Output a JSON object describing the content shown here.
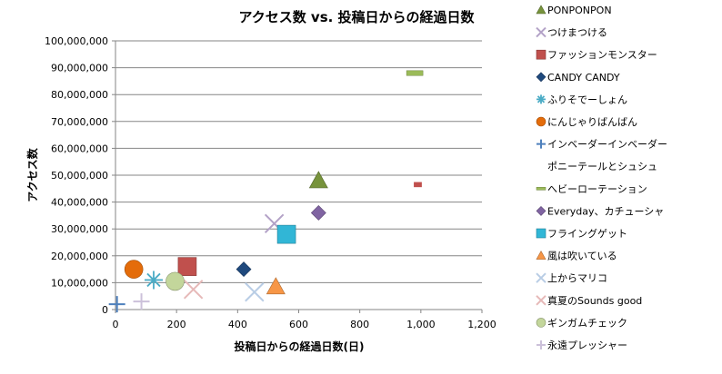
{
  "chart_data": {
    "type": "scatter",
    "title": "アクセス数 vs. 投稿日からの経過日数",
    "xlabel": "投稿日からの経過日数(日)",
    "ylabel": "アクセス数",
    "xlim": [
      0,
      1200
    ],
    "ylim": [
      0,
      100000000
    ],
    "x_ticks": [
      "0",
      "200",
      "400",
      "600",
      "800",
      "1,000",
      "1,200"
    ],
    "y_ticks": [
      "0",
      "10,000,000",
      "20,000,000",
      "30,000,000",
      "40,000,000",
      "50,000,000",
      "60,000,000",
      "70,000,000",
      "80,000,000",
      "90,000,000",
      "100,000,000"
    ],
    "grid": "horizontal",
    "legend_position": "right",
    "series": [
      {
        "name": "PONPONPON",
        "marker": "triangle",
        "color": "#77933C",
        "x": 665,
        "y": 48000000
      },
      {
        "name": "つけまつける",
        "marker": "x",
        "color": "#B3A2C7",
        "x": 520,
        "y": 32000000
      },
      {
        "name": "ファッションモンスター",
        "marker": "square",
        "color": "#C0504D",
        "x": 235,
        "y": 16000000
      },
      {
        "name": "CANDY CANDY",
        "marker": "diamond",
        "color": "#1F497D",
        "x": 420,
        "y": 15000000
      },
      {
        "name": "ふりそでーしょん",
        "marker": "star",
        "color": "#4BACC6",
        "x": 125,
        "y": 11000000
      },
      {
        "name": "にんじゃりばんばん",
        "marker": "circle",
        "color": "#E46C0A",
        "x": 60,
        "y": 15000000
      },
      {
        "name": "インベーダーインベーダー",
        "marker": "plus",
        "color": "#4F81BD",
        "x": 5,
        "y": 2000000
      },
      {
        "name": "ポニーテールとシュシュ",
        "marker": "none",
        "color": "#000000",
        "x": null,
        "y": null
      },
      {
        "name": "へビーローテーション",
        "marker": "dash",
        "color": "#9BBB59",
        "x": 980,
        "y": 88000000
      },
      {
        "name": "Everyday、カチューシャ",
        "marker": "diamond",
        "color": "#8064A2",
        "x": 665,
        "y": 36000000
      },
      {
        "name": "フライングゲット",
        "marker": "square",
        "color": "#31B6D6",
        "x": 560,
        "y": 28000000
      },
      {
        "name": "風は吹いている",
        "marker": "triangle",
        "color": "#F79646",
        "x": 525,
        "y": 8500000
      },
      {
        "name": "上からマリコ",
        "marker": "x",
        "color": "#B9CDE5",
        "x": 455,
        "y": 6500000
      },
      {
        "name": "真夏のSounds good",
        "marker": "x",
        "color": "#E6B9B8",
        "x": 255,
        "y": 7500000
      },
      {
        "name": "ギンガムチェック",
        "marker": "circle",
        "color": "#C3D69B",
        "x": 195,
        "y": 10500000
      },
      {
        "name": "永遠プレッシャー",
        "marker": "plus",
        "color": "#CCC1DA",
        "x": 85,
        "y": 3000000
      },
      {
        "name": "",
        "marker": "small-square",
        "color": "#C0504D",
        "x": 990,
        "y": 46500000
      }
    ]
  }
}
